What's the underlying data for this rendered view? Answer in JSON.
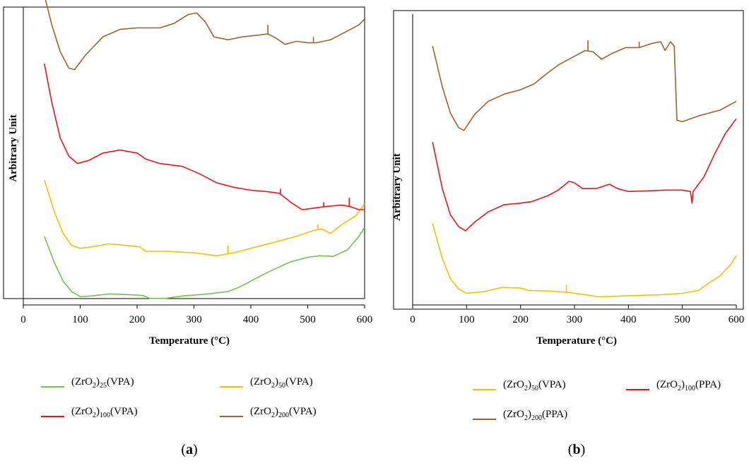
{
  "figure": {
    "panel_labels": [
      "a",
      "b"
    ]
  },
  "chart_data": [
    {
      "type": "line",
      "panel": "a",
      "xlabel": "Temperature (°C)",
      "ylabel": "Arbitrary Unit",
      "xlim": [
        0,
        600
      ],
      "x_ticks": [
        0,
        100,
        200,
        300,
        400,
        500,
        600
      ],
      "y_ticks_shown": false,
      "legend_position": "below",
      "series": [
        {
          "id": "a-zro2-25-vpa",
          "name": "(ZrO2)25(VPA)",
          "formula_base": "ZrO",
          "formula_sub1": "2",
          "formula_mid": ")",
          "formula_sub2": "25",
          "suffix": "(VPA)",
          "color": "#6fc44b",
          "points": [
            [
              37,
              0.23
            ],
            [
              55,
              0.14
            ],
            [
              70,
              0.08
            ],
            [
              85,
              0.045
            ],
            [
              100,
              0.028
            ],
            [
              120,
              0.03
            ],
            [
              150,
              0.037
            ],
            [
              180,
              0.035
            ],
            [
              210,
              0.032
            ],
            [
              222,
              0.022
            ],
            [
              250,
              0.022
            ],
            [
              280,
              0.03
            ],
            [
              320,
              0.036
            ],
            [
              360,
              0.045
            ],
            [
              380,
              0.06
            ],
            [
              400,
              0.08
            ],
            [
              430,
              0.11
            ],
            [
              470,
              0.145
            ],
            [
              500,
              0.16
            ],
            [
              520,
              0.165
            ],
            [
              545,
              0.163
            ],
            [
              570,
              0.185
            ],
            [
              590,
              0.23
            ],
            [
              600,
              0.26
            ]
          ],
          "spikes": []
        },
        {
          "id": "a-zro2-50-vpa",
          "name": "(ZrO2)50(VPA)",
          "formula_base": "ZrO",
          "formula_sub1": "2",
          "formula_mid": ")",
          "formula_sub2": "50",
          "suffix": "(VPA)",
          "color": "#f5c000",
          "points": [
            [
              37,
              0.42
            ],
            [
              55,
              0.31
            ],
            [
              70,
              0.24
            ],
            [
              85,
              0.2
            ],
            [
              100,
              0.19
            ],
            [
              120,
              0.195
            ],
            [
              150,
              0.205
            ],
            [
              180,
              0.2
            ],
            [
              205,
              0.195
            ],
            [
              215,
              0.18
            ],
            [
              250,
              0.18
            ],
            [
              300,
              0.175
            ],
            [
              340,
              0.165
            ],
            [
              370,
              0.175
            ],
            [
              400,
              0.19
            ],
            [
              440,
              0.21
            ],
            [
              480,
              0.23
            ],
            [
              510,
              0.25
            ],
            [
              525,
              0.255
            ],
            [
              540,
              0.24
            ],
            [
              560,
              0.27
            ],
            [
              585,
              0.3
            ],
            [
              600,
              0.34
            ]
          ],
          "spikes": [
            [
              360,
              0.2
            ],
            [
              518,
              0.27
            ]
          ]
        },
        {
          "id": "a-zro2-100-vpa",
          "name": "(ZrO2)100(VPA)",
          "formula_base": "ZrO",
          "formula_sub1": "2",
          "formula_mid": ")",
          "formula_sub2": "100",
          "suffix": "(VPA)",
          "color": "#e8151b",
          "points": [
            [
              37,
              0.81
            ],
            [
              50,
              0.68
            ],
            [
              65,
              0.56
            ],
            [
              80,
              0.5
            ],
            [
              95,
              0.475
            ],
            [
              115,
              0.485
            ],
            [
              140,
              0.51
            ],
            [
              170,
              0.52
            ],
            [
              200,
              0.51
            ],
            [
              215,
              0.49
            ],
            [
              240,
              0.475
            ],
            [
              280,
              0.465
            ],
            [
              310,
              0.44
            ],
            [
              340,
              0.41
            ],
            [
              370,
              0.395
            ],
            [
              400,
              0.385
            ],
            [
              430,
              0.38
            ],
            [
              450,
              0.375
            ],
            [
              470,
              0.345
            ],
            [
              490,
              0.32
            ],
            [
              510,
              0.325
            ],
            [
              530,
              0.33
            ],
            [
              560,
              0.335
            ],
            [
              575,
              0.33
            ],
            [
              590,
              0.32
            ],
            [
              600,
              0.32
            ]
          ],
          "spikes": [
            [
              452,
              0.39
            ],
            [
              528,
              0.345
            ],
            [
              573,
              0.36
            ]
          ]
        },
        {
          "id": "a-zro2-200-vpa",
          "name": "(ZrO2)200(VPA)",
          "formula_base": "ZrO",
          "formula_sub1": "2",
          "formula_mid": ")",
          "formula_sub2": "200",
          "suffix": "(VPA)",
          "color": "#a0612a",
          "points": [
            [
              37,
              1.04
            ],
            [
              50,
              0.94
            ],
            [
              65,
              0.85
            ],
            [
              80,
              0.795
            ],
            [
              90,
              0.79
            ],
            [
              110,
              0.84
            ],
            [
              140,
              0.9
            ],
            [
              170,
              0.925
            ],
            [
              200,
              0.93
            ],
            [
              215,
              0.93
            ],
            [
              240,
              0.93
            ],
            [
              265,
              0.945
            ],
            [
              290,
              0.975
            ],
            [
              305,
              0.98
            ],
            [
              320,
              0.95
            ],
            [
              335,
              0.9
            ],
            [
              360,
              0.89
            ],
            [
              385,
              0.9
            ],
            [
              410,
              0.905
            ],
            [
              430,
              0.91
            ],
            [
              445,
              0.895
            ],
            [
              460,
              0.875
            ],
            [
              480,
              0.885
            ],
            [
              500,
              0.88
            ],
            [
              515,
              0.88
            ],
            [
              540,
              0.89
            ],
            [
              570,
              0.92
            ],
            [
              590,
              0.94
            ],
            [
              600,
              0.96
            ]
          ],
          "spikes": [
            [
              430,
              0.94
            ],
            [
              510,
              0.9
            ]
          ]
        }
      ]
    },
    {
      "type": "line",
      "panel": "b",
      "xlabel": "Temperature (°C)",
      "ylabel": "Arbitrary Unit",
      "xlim": [
        0,
        600
      ],
      "x_ticks": [
        0,
        100,
        200,
        300,
        400,
        500,
        600
      ],
      "y_ticks_shown": false,
      "legend_position": "below",
      "series": [
        {
          "id": "b-zro2-50-vpa",
          "name": "(ZrO2)50(VPA)",
          "formula_base": "ZrO",
          "formula_sub1": "2",
          "formula_mid": ")",
          "formula_sub2": "50",
          "suffix": "(VPA)",
          "color": "#f5c000",
          "points": [
            [
              37,
              0.28
            ],
            [
              55,
              0.16
            ],
            [
              70,
              0.09
            ],
            [
              85,
              0.055
            ],
            [
              100,
              0.04
            ],
            [
              130,
              0.045
            ],
            [
              165,
              0.06
            ],
            [
              200,
              0.058
            ],
            [
              215,
              0.05
            ],
            [
              250,
              0.048
            ],
            [
              290,
              0.043
            ],
            [
              320,
              0.035
            ],
            [
              345,
              0.028
            ],
            [
              380,
              0.03
            ],
            [
              420,
              0.033
            ],
            [
              460,
              0.035
            ],
            [
              500,
              0.04
            ],
            [
              530,
              0.05
            ],
            [
              545,
              0.07
            ],
            [
              570,
              0.1
            ],
            [
              590,
              0.14
            ],
            [
              600,
              0.17
            ]
          ],
          "spikes": [
            [
              285,
              0.07
            ]
          ]
        },
        {
          "id": "b-zro2-100-ppa",
          "name": "(ZrO2)100(PPA)",
          "formula_base": "ZrO",
          "formula_sub1": "2",
          "formula_mid": ")",
          "formula_sub2": "100",
          "suffix": "(PPA)",
          "color": "#e8151b",
          "points": [
            [
              37,
              0.56
            ],
            [
              55,
              0.4
            ],
            [
              70,
              0.31
            ],
            [
              85,
              0.27
            ],
            [
              98,
              0.255
            ],
            [
              115,
              0.285
            ],
            [
              140,
              0.32
            ],
            [
              170,
              0.345
            ],
            [
              200,
              0.35
            ],
            [
              220,
              0.355
            ],
            [
              250,
              0.375
            ],
            [
              270,
              0.395
            ],
            [
              290,
              0.425
            ],
            [
              300,
              0.42
            ],
            [
              315,
              0.4
            ],
            [
              340,
              0.4
            ],
            [
              365,
              0.415
            ],
            [
              380,
              0.4
            ],
            [
              400,
              0.39
            ],
            [
              430,
              0.392
            ],
            [
              470,
              0.395
            ],
            [
              500,
              0.395
            ],
            [
              515,
              0.39
            ],
            [
              518,
              0.35
            ],
            [
              520,
              0.39
            ],
            [
              540,
              0.44
            ],
            [
              560,
              0.52
            ],
            [
              580,
              0.59
            ],
            [
              600,
              0.64
            ]
          ],
          "spikes": []
        },
        {
          "id": "b-zro2-200-ppa",
          "name": "(ZrO2)200(PPA)",
          "formula_base": "ZrO",
          "formula_sub1": "2",
          "formula_mid": ")",
          "formula_sub2": "200",
          "suffix": "(PPA)",
          "color": "#a0612a",
          "points": [
            [
              37,
              0.89
            ],
            [
              55,
              0.75
            ],
            [
              70,
              0.66
            ],
            [
              85,
              0.61
            ],
            [
              95,
              0.6
            ],
            [
              115,
              0.655
            ],
            [
              140,
              0.7
            ],
            [
              170,
              0.725
            ],
            [
              200,
              0.74
            ],
            [
              225,
              0.76
            ],
            [
              245,
              0.79
            ],
            [
              270,
              0.825
            ],
            [
              300,
              0.855
            ],
            [
              320,
              0.875
            ],
            [
              335,
              0.87
            ],
            [
              350,
              0.845
            ],
            [
              370,
              0.865
            ],
            [
              395,
              0.885
            ],
            [
              420,
              0.885
            ],
            [
              445,
              0.9
            ],
            [
              460,
              0.905
            ],
            [
              468,
              0.875
            ],
            [
              478,
              0.905
            ],
            [
              485,
              0.89
            ],
            [
              490,
              0.635
            ],
            [
              500,
              0.63
            ],
            [
              530,
              0.65
            ],
            [
              570,
              0.67
            ],
            [
              600,
              0.7
            ]
          ],
          "spikes": [
            [
              325,
              0.91
            ],
            [
              420,
              0.905
            ]
          ]
        }
      ]
    }
  ]
}
